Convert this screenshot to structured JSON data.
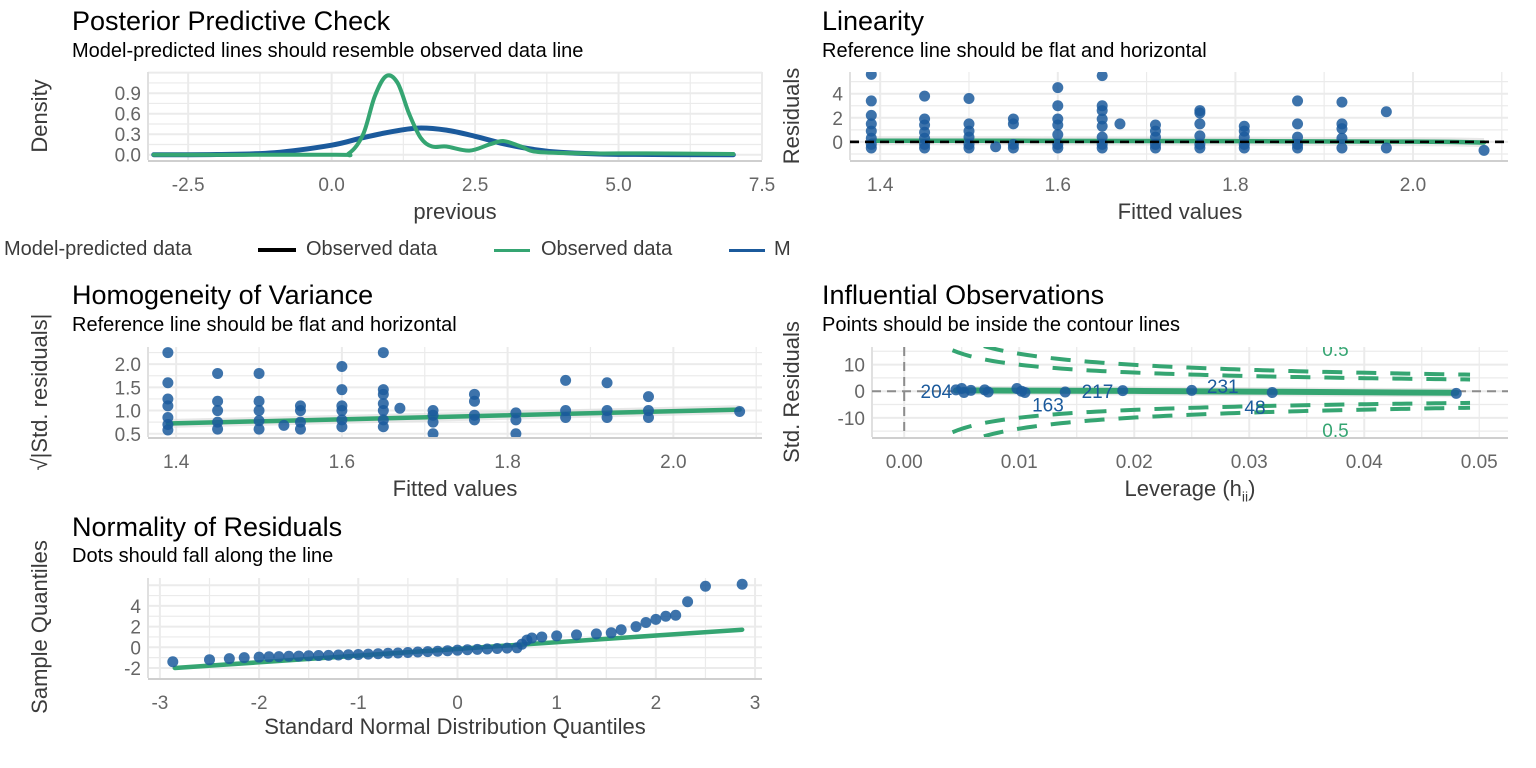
{
  "colors": {
    "blue": "#1b5a9c",
    "green": "#35a572",
    "black": "#000000",
    "grid": "#ebebeb",
    "ref": "#8c8c8c"
  },
  "legend": {
    "items": [
      {
        "label": "Model-predicted data"
      },
      {
        "label": "Observed data",
        "line_color": "#000000"
      },
      {
        "label": "Observed data",
        "line_color": "#35a572"
      },
      {
        "label": "M",
        "line_color": "#1b5a9c"
      }
    ]
  },
  "chart_data": [
    {
      "id": "ppc",
      "type": "line",
      "title": "Posterior Predictive Check",
      "subtitle": "Model-predicted lines should resemble observed data line",
      "xlabel": "previous",
      "ylabel": "Density",
      "xlim": [
        -3.2,
        7.5
      ],
      "ylim": [
        -0.077,
        1.21
      ],
      "xticks": [
        -2.5,
        0,
        2.5,
        5,
        7.5
      ],
      "xtick_labels": [
        "-2.5",
        "0.0",
        "2.5",
        "5.0",
        "7.5"
      ],
      "yticks": [
        0,
        0.3,
        0.6,
        0.9
      ],
      "ytick_labels": [
        "0.0",
        "0.3",
        "0.6",
        "0.9"
      ],
      "grid": true,
      "series": [
        {
          "name": "Model-predicted data",
          "color": "#1b5a9c",
          "kind": "line",
          "points": [
            [
              -3.1,
              0
            ],
            [
              -2,
              0.003
            ],
            [
              -1,
              0.03
            ],
            [
              0,
              0.14
            ],
            [
              0.5,
              0.24
            ],
            [
              1,
              0.33
            ],
            [
              1.5,
              0.39
            ],
            [
              2,
              0.36
            ],
            [
              2.5,
              0.27
            ],
            [
              3,
              0.16
            ],
            [
              3.5,
              0.08
            ],
            [
              4,
              0.035
            ],
            [
              5,
              0.006
            ],
            [
              7,
              0
            ]
          ]
        },
        {
          "name": "Observed data",
          "color": "#35a572",
          "kind": "line",
          "points": [
            [
              -3.1,
              0
            ],
            [
              0,
              0
            ],
            [
              0.3,
              0.02
            ],
            [
              0.55,
              0.3
            ],
            [
              0.75,
              0.85
            ],
            [
              0.95,
              1.15
            ],
            [
              1.15,
              1.05
            ],
            [
              1.35,
              0.6
            ],
            [
              1.55,
              0.25
            ],
            [
              1.75,
              0.12
            ],
            [
              2.0,
              0.12
            ],
            [
              2.4,
              0.06
            ],
            [
              2.75,
              0.15
            ],
            [
              3.0,
              0.2
            ],
            [
              3.3,
              0.12
            ],
            [
              3.6,
              0.04
            ],
            [
              4.5,
              0.02
            ],
            [
              5.5,
              0.02
            ],
            [
              7.0,
              0.01
            ]
          ]
        }
      ]
    },
    {
      "id": "lin",
      "type": "scatter",
      "title": "Linearity",
      "subtitle": "Reference line should be flat and horizontal",
      "xlabel": "Fitted values",
      "ylabel": "Residuals",
      "xlim": [
        1.366,
        2.107
      ],
      "ylim": [
        -1.5,
        5.8
      ],
      "xticks": [
        1.4,
        1.6,
        1.8,
        2.0
      ],
      "xtick_labels": [
        "1.4",
        "1.6",
        "1.8",
        "2.0"
      ],
      "yticks": [
        0,
        2,
        4
      ],
      "ytick_labels": [
        "0",
        "2",
        "4"
      ],
      "grid": true,
      "columns": [
        {
          "x": 1.39,
          "y": [
            -0.5,
            -0.2,
            0.3,
            0.9,
            1.5,
            2.2,
            3.4,
            5.6
          ]
        },
        {
          "x": 1.45,
          "y": [
            -0.5,
            -0.2,
            0.3,
            0.8,
            1.4,
            1.9,
            3.8
          ]
        },
        {
          "x": 1.5,
          "y": [
            -0.5,
            -0.2,
            0.4,
            0.9,
            1.5,
            3.6
          ]
        },
        {
          "x": 1.53,
          "y": [
            -0.4
          ]
        },
        {
          "x": 1.55,
          "y": [
            -0.5,
            -0.2,
            1.5,
            1.9
          ]
        },
        {
          "x": 1.6,
          "y": [
            -0.5,
            -0.2,
            0.6,
            1.4,
            1.9,
            3.0,
            4.5
          ]
        },
        {
          "x": 1.65,
          "y": [
            -0.5,
            -0.2,
            0.4,
            1.3,
            1.9,
            2.6,
            3.0,
            5.5
          ]
        },
        {
          "x": 1.67,
          "y": [
            1.5
          ]
        },
        {
          "x": 1.71,
          "y": [
            -0.5,
            -0.2,
            0.4,
            0.9,
            1.4
          ]
        },
        {
          "x": 1.76,
          "y": [
            -0.5,
            -0.2,
            0.5,
            1.5,
            2.4,
            2.6
          ]
        },
        {
          "x": 1.81,
          "y": [
            -0.5,
            -0.2,
            0.4,
            0.9,
            1.3
          ]
        },
        {
          "x": 1.87,
          "y": [
            -0.5,
            -0.2,
            0.4,
            1.5,
            3.4
          ]
        },
        {
          "x": 1.92,
          "y": [
            -0.5,
            0.3,
            1.1,
            1.5,
            3.3
          ]
        },
        {
          "x": 1.97,
          "y": [
            -0.5,
            2.5
          ]
        },
        {
          "x": 2.08,
          "y": [
            -0.7
          ]
        }
      ],
      "fit_line": [
        [
          1.39,
          0.1
        ],
        [
          1.7,
          0.08
        ],
        [
          2.0,
          0.02
        ],
        [
          2.08,
          -0.05
        ]
      ],
      "reference_y": 0
    },
    {
      "id": "hom",
      "type": "scatter",
      "title": "Homogeneity of Variance",
      "subtitle": "Reference line should be flat and horizontal",
      "xlabel": "Fitted values",
      "ylabel": "√|Std. residuals|",
      "xlim": [
        1.366,
        2.107
      ],
      "ylim": [
        0.43,
        2.37
      ],
      "xticks": [
        1.4,
        1.6,
        1.8,
        2.0
      ],
      "xtick_labels": [
        "1.4",
        "1.6",
        "1.8",
        "2.0"
      ],
      "yticks": [
        0.5,
        1.0,
        1.5,
        2.0
      ],
      "ytick_labels": [
        "0.5",
        "1.0",
        "1.5",
        "2.0"
      ],
      "grid": true,
      "columns": [
        {
          "x": 1.39,
          "y": [
            0.58,
            0.7,
            0.85,
            1.1,
            1.25,
            1.6,
            2.25
          ]
        },
        {
          "x": 1.45,
          "y": [
            0.6,
            0.75,
            1.0,
            1.2,
            1.8
          ]
        },
        {
          "x": 1.5,
          "y": [
            0.6,
            0.78,
            1.0,
            1.2,
            1.8
          ]
        },
        {
          "x": 1.53,
          "y": [
            0.68
          ]
        },
        {
          "x": 1.55,
          "y": [
            0.6,
            0.75,
            1.0,
            1.1
          ]
        },
        {
          "x": 1.6,
          "y": [
            0.65,
            0.8,
            1.0,
            1.1,
            1.45,
            1.95
          ]
        },
        {
          "x": 1.65,
          "y": [
            0.65,
            0.8,
            1.0,
            1.15,
            1.35,
            1.45,
            2.25
          ]
        },
        {
          "x": 1.67,
          "y": [
            1.05
          ]
        },
        {
          "x": 1.71,
          "y": [
            0.5,
            0.75,
            0.9,
            1.0
          ]
        },
        {
          "x": 1.76,
          "y": [
            0.8,
            0.9,
            1.2,
            1.35
          ]
        },
        {
          "x": 1.81,
          "y": [
            0.5,
            0.8,
            0.95
          ]
        },
        {
          "x": 1.87,
          "y": [
            0.85,
            1.0,
            1.65
          ]
        },
        {
          "x": 1.92,
          "y": [
            0.85,
            1.0,
            1.6
          ]
        },
        {
          "x": 1.97,
          "y": [
            0.85,
            1.0,
            1.3
          ]
        },
        {
          "x": 2.08,
          "y": [
            0.98
          ]
        }
      ],
      "fit_line": [
        [
          1.39,
          0.72
        ],
        [
          2.08,
          1.02
        ]
      ]
    },
    {
      "id": "infl",
      "type": "scatter",
      "title": "Influential Observations",
      "subtitle": "Points should be inside the contour lines",
      "xlabel": "Leverage (h",
      "xlabel_sub": "ii",
      "xlabel_end": ")",
      "ylabel": "Std. Residuals",
      "xlim": [
        -0.0028,
        0.0525
      ],
      "ylim": [
        -17.2,
        16.6
      ],
      "xticks": [
        0,
        0.01,
        0.02,
        0.03,
        0.04,
        0.05
      ],
      "xtick_labels": [
        "0.00",
        "0.01",
        "0.02",
        "0.03",
        "0.04",
        "0.05"
      ],
      "yticks": [
        -10,
        0,
        10
      ],
      "ytick_labels": [
        "-10",
        "0",
        "10"
      ],
      "grid": true,
      "points": [
        [
          0.0045,
          0.5
        ],
        [
          0.005,
          1
        ],
        [
          0.0052,
          -0.5
        ],
        [
          0.0058,
          0.3
        ],
        [
          0.007,
          0.5
        ],
        [
          0.0073,
          -0.3
        ],
        [
          0.0098,
          1
        ],
        [
          0.0102,
          0
        ],
        [
          0.0105,
          -0.5
        ],
        [
          0.014,
          -0.3
        ],
        [
          0.019,
          0.2
        ],
        [
          0.025,
          0.3
        ],
        [
          0.032,
          -0.5
        ],
        [
          0.048,
          -0.8
        ]
      ],
      "point_labels": [
        {
          "text": "204",
          "x": 0.0028,
          "y": 0
        },
        {
          "text": "163",
          "x": 0.0125,
          "y": -5
        },
        {
          "text": "217",
          "x": 0.0168,
          "y": 0
        },
        {
          "text": "231",
          "x": 0.0277,
          "y": 2
        },
        {
          "text": "48",
          "x": 0.0305,
          "y": -6
        }
      ],
      "cooks_levels": [
        0.5,
        1
      ],
      "contour_labels": [
        {
          "text": "0.5",
          "x": 0.0375,
          "y": 15.8
        },
        {
          "text": "0.5",
          "x": 0.0375,
          "y": -14.5
        }
      ],
      "fit_line": [
        [
          0.0045,
          0.3
        ],
        [
          0.02,
          0.1
        ],
        [
          0.048,
          -0.6
        ]
      ],
      "reference_x": 0,
      "reference_y": 0
    },
    {
      "id": "qq",
      "type": "scatter",
      "title": "Normality of Residuals",
      "subtitle": "Dots should fall along the line",
      "xlabel": "Standard Normal Distribution Quantiles",
      "ylabel": "Sample Quantiles",
      "xlim": [
        -3.12,
        3.07
      ],
      "ylim": [
        -2.97,
        6.7
      ],
      "xticks": [
        -3,
        -2,
        -1,
        0,
        1,
        2,
        3
      ],
      "xtick_labels": [
        "-3",
        "-2",
        "-1",
        "0",
        "1",
        "2",
        "3"
      ],
      "yticks": [
        -2,
        0,
        2,
        4
      ],
      "ytick_labels": [
        "-2",
        "0",
        "2",
        "4"
      ],
      "grid": true,
      "points": [
        [
          -2.87,
          -1.4
        ],
        [
          -2.5,
          -1.2
        ],
        [
          -2.3,
          -1.1
        ],
        [
          -2.15,
          -1.0
        ],
        [
          -2.0,
          -0.95
        ],
        [
          -1.9,
          -0.92
        ],
        [
          -1.8,
          -0.9
        ],
        [
          -1.7,
          -0.87
        ],
        [
          -1.6,
          -0.85
        ],
        [
          -1.5,
          -0.82
        ],
        [
          -1.4,
          -0.8
        ],
        [
          -1.3,
          -0.78
        ],
        [
          -1.2,
          -0.75
        ],
        [
          -1.1,
          -0.72
        ],
        [
          -1.0,
          -0.7
        ],
        [
          -0.9,
          -0.66
        ],
        [
          -0.8,
          -0.62
        ],
        [
          -0.7,
          -0.58
        ],
        [
          -0.6,
          -0.55
        ],
        [
          -0.5,
          -0.5
        ],
        [
          -0.4,
          -0.46
        ],
        [
          -0.3,
          -0.42
        ],
        [
          -0.2,
          -0.38
        ],
        [
          -0.1,
          -0.33
        ],
        [
          0,
          -0.28
        ],
        [
          0.1,
          -0.24
        ],
        [
          0.2,
          -0.2
        ],
        [
          0.3,
          -0.16
        ],
        [
          0.4,
          -0.12
        ],
        [
          0.5,
          -0.08
        ],
        [
          0.6,
          -0.05
        ],
        [
          0.65,
          0.3
        ],
        [
          0.7,
          0.7
        ],
        [
          0.75,
          0.9
        ],
        [
          0.85,
          1.0
        ],
        [
          1.0,
          1.1
        ],
        [
          1.2,
          1.2
        ],
        [
          1.4,
          1.3
        ],
        [
          1.55,
          1.4
        ],
        [
          1.65,
          1.7
        ],
        [
          1.8,
          2.0
        ],
        [
          1.9,
          2.4
        ],
        [
          2.0,
          2.7
        ],
        [
          2.1,
          3.0
        ],
        [
          2.2,
          3.1
        ],
        [
          2.32,
          4.4
        ],
        [
          2.5,
          5.9
        ],
        [
          2.87,
          6.1
        ]
      ],
      "fit_line": [
        [
          -2.85,
          -2.0
        ],
        [
          2.87,
          1.7
        ]
      ]
    }
  ]
}
